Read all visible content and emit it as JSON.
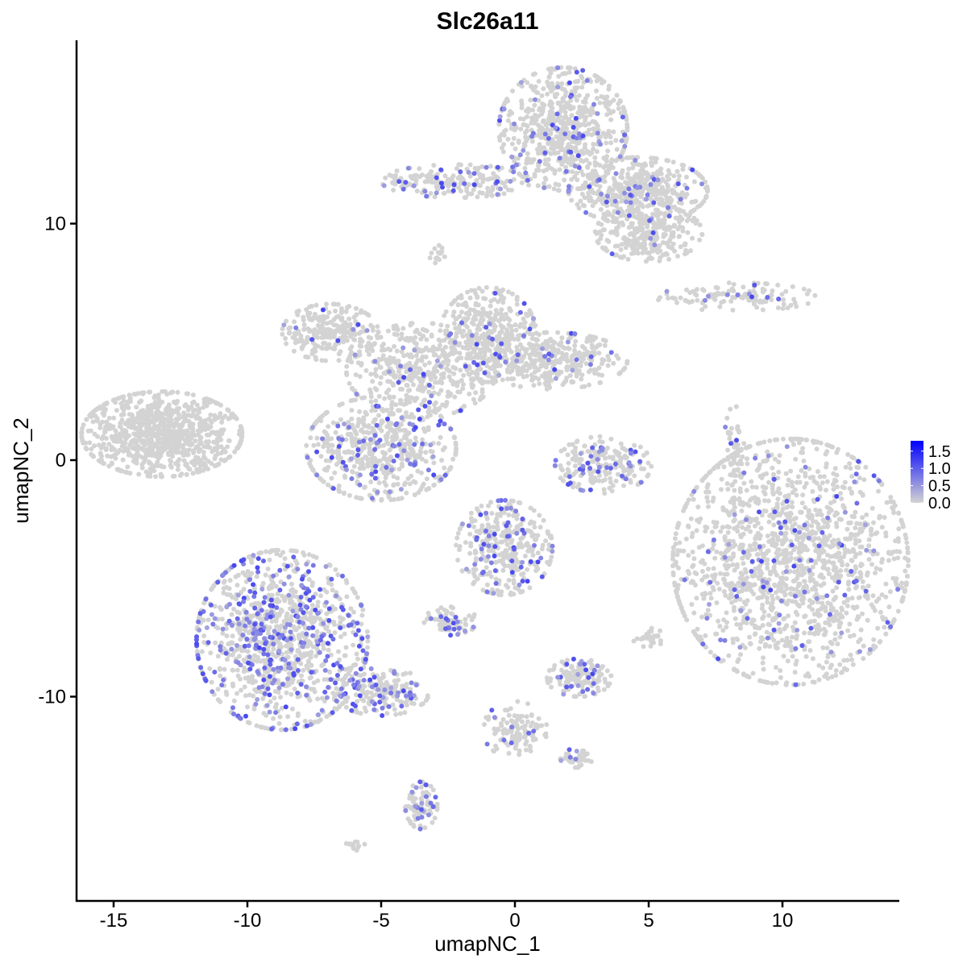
{
  "chart_data": {
    "type": "scatter",
    "title": "Slc26a11",
    "xlabel": "umapNC_1",
    "ylabel": "umapNC_2",
    "xlim": [
      -16.5,
      14.5
    ],
    "ylim": [
      -18.5,
      17.7
    ],
    "xticks": [
      -15,
      -10,
      -5,
      0,
      5,
      10
    ],
    "yticks": [
      -10,
      0,
      10
    ],
    "grid": false,
    "legend": {
      "placement": "right",
      "type": "colorbar",
      "ticks": [
        "0.0",
        "0.5",
        "1.0",
        "1.5"
      ],
      "range": [
        0,
        1.8
      ]
    },
    "colors": {
      "low": "#d3d3d3",
      "high": "#0000ff"
    },
    "clusters": [
      {
        "center": [
          -13.2,
          1.1
        ],
        "spread": [
          1.5,
          0.9
        ],
        "n": 900,
        "expr_fraction": 0.0
      },
      {
        "center": [
          1.8,
          14.0
        ],
        "spread": [
          1.2,
          1.3
        ],
        "n": 700,
        "expr_fraction": 0.08
      },
      {
        "center": [
          4.6,
          11.4
        ],
        "spread": [
          1.3,
          0.7
        ],
        "n": 450,
        "expr_fraction": 0.06
      },
      {
        "center": [
          5.0,
          9.6
        ],
        "spread": [
          1.0,
          0.6
        ],
        "n": 300,
        "expr_fraction": 0.03
      },
      {
        "center": [
          -2.2,
          11.8
        ],
        "spread": [
          1.4,
          0.35
        ],
        "n": 200,
        "expr_fraction": 0.15
      },
      {
        "center": [
          -2.8,
          8.7
        ],
        "spread": [
          0.2,
          0.2
        ],
        "n": 15,
        "expr_fraction": 0.0
      },
      {
        "center": [
          -6.9,
          5.4
        ],
        "spread": [
          0.9,
          0.6
        ],
        "n": 250,
        "expr_fraction": 0.04
      },
      {
        "center": [
          -3.5,
          3.8
        ],
        "spread": [
          1.4,
          1.0
        ],
        "n": 450,
        "expr_fraction": 0.04
      },
      {
        "center": [
          -1.0,
          5.3
        ],
        "spread": [
          0.9,
          1.0
        ],
        "n": 350,
        "expr_fraction": 0.07
      },
      {
        "center": [
          1.4,
          4.2
        ],
        "spread": [
          1.4,
          0.6
        ],
        "n": 350,
        "expr_fraction": 0.07
      },
      {
        "center": [
          -5.0,
          0.5
        ],
        "spread": [
          1.4,
          1.1
        ],
        "n": 550,
        "expr_fraction": 0.15
      },
      {
        "center": [
          3.3,
          -0.2
        ],
        "spread": [
          0.9,
          0.6
        ],
        "n": 200,
        "expr_fraction": 0.12
      },
      {
        "center": [
          10.3,
          -4.3
        ],
        "spread": [
          2.2,
          2.6
        ],
        "n": 1600,
        "expr_fraction": 0.06
      },
      {
        "center": [
          8.2,
          0.3
        ],
        "spread": [
          0.2,
          1.0
        ],
        "n": 60,
        "expr_fraction": 0.03
      },
      {
        "center": [
          8.3,
          6.9
        ],
        "spread": [
          1.5,
          0.3
        ],
        "n": 120,
        "expr_fraction": 0.03
      },
      {
        "center": [
          -0.4,
          -3.7
        ],
        "spread": [
          0.9,
          1.0
        ],
        "n": 350,
        "expr_fraction": 0.15
      },
      {
        "center": [
          -2.4,
          -6.8
        ],
        "spread": [
          0.5,
          0.3
        ],
        "n": 70,
        "expr_fraction": 0.2
      },
      {
        "center": [
          -8.7,
          -7.6
        ],
        "spread": [
          1.6,
          1.9
        ],
        "n": 1100,
        "expr_fraction": 0.25
      },
      {
        "center": [
          -5.0,
          -9.8
        ],
        "spread": [
          0.9,
          0.5
        ],
        "n": 200,
        "expr_fraction": 0.2
      },
      {
        "center": [
          -3.5,
          -14.6
        ],
        "spread": [
          0.3,
          0.5
        ],
        "n": 90,
        "expr_fraction": 0.2
      },
      {
        "center": [
          2.4,
          -9.2
        ],
        "spread": [
          0.6,
          0.4
        ],
        "n": 150,
        "expr_fraction": 0.15
      },
      {
        "center": [
          0.0,
          -11.4
        ],
        "spread": [
          0.6,
          0.6
        ],
        "n": 120,
        "expr_fraction": 0.05
      },
      {
        "center": [
          2.3,
          -12.6
        ],
        "spread": [
          0.3,
          0.2
        ],
        "n": 40,
        "expr_fraction": 0.2
      },
      {
        "center": [
          5.0,
          -7.5
        ],
        "spread": [
          0.3,
          0.2
        ],
        "n": 30,
        "expr_fraction": 0.0
      },
      {
        "center": [
          -6.0,
          -16.3
        ],
        "spread": [
          0.2,
          0.1
        ],
        "n": 15,
        "expr_fraction": 0.0
      }
    ]
  }
}
